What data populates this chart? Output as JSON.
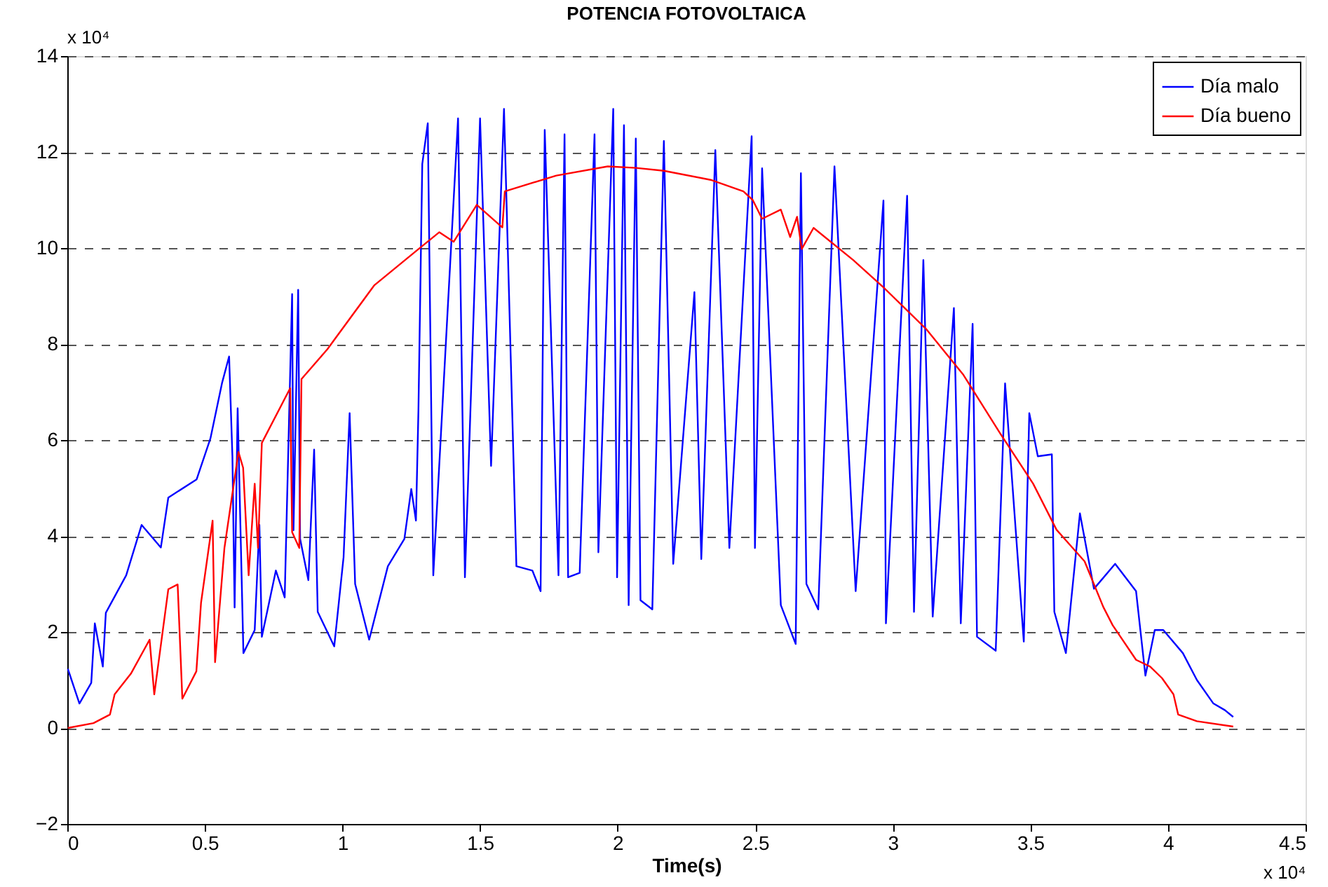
{
  "chart_data": {
    "type": "line",
    "title": "POTENCIA FOTOVOLTAICA",
    "xlabel": "Time(s)",
    "xlim": [
      0,
      4.5
    ],
    "xticks": [
      0,
      0.5,
      1,
      1.5,
      2,
      2.5,
      3,
      3.5,
      4,
      4.5
    ],
    "ylim": [
      -2,
      14
    ],
    "yticks": [
      -2,
      0,
      2,
      4,
      6,
      8,
      10,
      12,
      14
    ],
    "grid": "y",
    "legend": "top right",
    "marker": "none",
    "line_style": "solid",
    "annotations": [
      "x 10⁴",
      "x 10⁴"
    ],
    "series": [
      {
        "name": "Día malo",
        "color": "#0000ff",
        "x": [
          0.002,
          0.044,
          0.087,
          0.1,
          0.129,
          0.14,
          0.214,
          0.27,
          0.34,
          0.367,
          0.47,
          0.52,
          0.562,
          0.588,
          0.6,
          0.608,
          0.619,
          0.64,
          0.681,
          0.698,
          0.707,
          0.758,
          0.79,
          0.817,
          0.822,
          0.839,
          0.846,
          0.876,
          0.897,
          0.91,
          0.97,
          1.004,
          1.026,
          1.046,
          1.097,
          1.165,
          1.225,
          1.25,
          1.267,
          1.276,
          1.29,
          1.31,
          1.33,
          1.42,
          1.445,
          1.5,
          1.54,
          1.587,
          1.632,
          1.69,
          1.72,
          1.735,
          1.785,
          1.807,
          1.82,
          1.862,
          1.916,
          1.93,
          1.984,
          1.998,
          2.023,
          2.04,
          2.066,
          2.083,
          2.126,
          2.168,
          2.202,
          2.279,
          2.304,
          2.355,
          2.406,
          2.487,
          2.499,
          2.525,
          2.593,
          2.647,
          2.666,
          2.686,
          2.729,
          2.788,
          2.865,
          2.966,
          2.975,
          3.052,
          3.077,
          3.111,
          3.145,
          3.222,
          3.247,
          3.29,
          3.306,
          3.374,
          3.408,
          3.476,
          3.496,
          3.527,
          3.578,
          3.587,
          3.629,
          3.68,
          3.731,
          3.808,
          3.884,
          3.918,
          3.952,
          3.983,
          4.054,
          4.105,
          4.165,
          4.207,
          4.237
        ],
        "values": [
          1.23,
          0.51,
          0.94,
          2.18,
          1.28,
          2.4,
          3.18,
          4.23,
          3.76,
          4.8,
          5.18,
          6.03,
          7.18,
          7.74,
          5.66,
          2.51,
          6.66,
          1.56,
          2.04,
          4.23,
          1.9,
          3.28,
          2.72,
          9.04,
          4.12,
          9.13,
          3.94,
          3.08,
          5.8,
          2.42,
          1.7,
          3.56,
          6.56,
          3.0,
          1.84,
          3.37,
          3.94,
          4.98,
          4.32,
          6.61,
          11.75,
          12.6,
          3.18,
          12.7,
          3.14,
          12.7,
          5.46,
          12.9,
          3.37,
          3.28,
          2.85,
          12.46,
          3.18,
          12.37,
          3.14,
          3.23,
          12.37,
          3.66,
          12.9,
          3.14,
          12.56,
          2.56,
          12.28,
          2.66,
          2.47,
          12.23,
          3.42,
          9.08,
          3.52,
          12.04,
          3.75,
          12.33,
          3.75,
          11.66,
          2.56,
          1.75,
          11.56,
          3.0,
          2.47,
          11.7,
          2.85,
          10.99,
          2.18,
          11.09,
          2.42,
          9.75,
          2.32,
          8.75,
          2.18,
          8.42,
          1.9,
          1.61,
          7.18,
          1.8,
          6.56,
          5.66,
          5.7,
          2.42,
          1.56,
          4.47,
          2.9,
          3.42,
          2.85,
          1.09,
          2.04,
          2.04,
          1.56,
          1.0,
          0.51,
          0.37,
          0.23
        ]
      },
      {
        "name": "Día bueno",
        "color": "#ff0000",
        "x": [
          0.002,
          0.095,
          0.155,
          0.172,
          0.231,
          0.299,
          0.316,
          0.367,
          0.401,
          0.418,
          0.469,
          0.486,
          0.528,
          0.537,
          0.571,
          0.622,
          0.639,
          0.659,
          0.681,
          0.693,
          0.707,
          0.81,
          0.817,
          0.843,
          0.851,
          0.945,
          1.115,
          1.268,
          1.352,
          1.404,
          1.488,
          1.581,
          1.59,
          1.777,
          1.964,
          2.066,
          2.168,
          2.338,
          2.457,
          2.491,
          2.525,
          2.593,
          2.627,
          2.652,
          2.669,
          2.712,
          2.856,
          2.966,
          3.12,
          3.255,
          3.391,
          3.51,
          3.595,
          3.697,
          3.765,
          3.799,
          3.884,
          3.935,
          3.978,
          4.02,
          4.037,
          4.105,
          4.237
        ],
        "values": [
          0,
          0.1,
          0.28,
          0.7,
          1.13,
          1.84,
          0.7,
          2.89,
          2.99,
          0.61,
          1.18,
          2.61,
          4.32,
          1.37,
          3.75,
          5.75,
          5.42,
          3.18,
          5.09,
          3.75,
          5.94,
          7.08,
          4.08,
          3.75,
          7.27,
          7.89,
          9.22,
          9.94,
          10.33,
          10.13,
          10.9,
          10.43,
          11.18,
          11.51,
          11.7,
          11.67,
          11.61,
          11.42,
          11.18,
          11.0,
          10.61,
          10.8,
          10.23,
          10.65,
          9.98,
          10.42,
          9.75,
          9.18,
          8.32,
          7.37,
          6.13,
          5.09,
          4.13,
          3.47,
          2.52,
          2.14,
          1.42,
          1.28,
          1.04,
          0.7,
          0.28,
          0.14,
          0.03
        ]
      }
    ]
  }
}
